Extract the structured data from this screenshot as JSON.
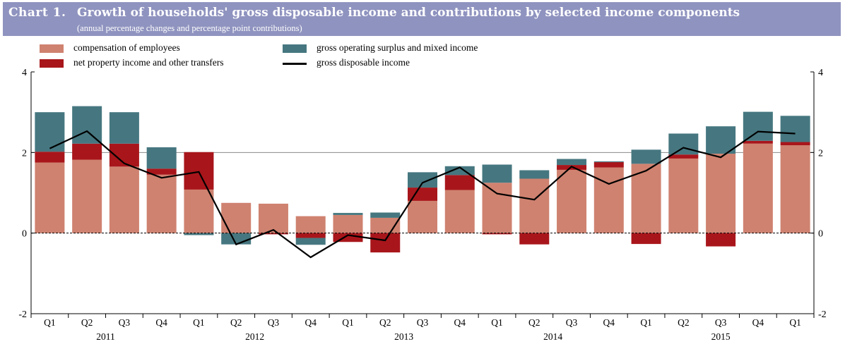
{
  "header": {
    "label": "Chart 1.",
    "title": "Growth of households' gross disposable income and contributions by selected income components",
    "subtitle": "(annual percentage changes and percentage point contributions)"
  },
  "legend": [
    {
      "name": "compensation of employees",
      "color": "#cf8270",
      "kind": "bar"
    },
    {
      "name": "net property income and other transfers",
      "color": "#a8161b",
      "kind": "bar"
    },
    {
      "name": "gross operating surplus and mixed income",
      "color": "#467780",
      "kind": "bar"
    },
    {
      "name": "gross disposable income",
      "color": "#000000",
      "kind": "line"
    }
  ],
  "chart_data": {
    "type": "bar",
    "stacked": true,
    "categories": [
      "Q1",
      "Q2",
      "Q3",
      "Q4",
      "Q1",
      "Q2",
      "Q3",
      "Q4",
      "Q1",
      "Q2",
      "Q3",
      "Q4",
      "Q1",
      "Q2",
      "Q3",
      "Q4",
      "Q1",
      "Q2",
      "Q3",
      "Q4",
      "Q1"
    ],
    "years": [
      {
        "label": "2011",
        "start": 0,
        "end": 3
      },
      {
        "label": "2012",
        "start": 4,
        "end": 7
      },
      {
        "label": "2013",
        "start": 8,
        "end": 11
      },
      {
        "label": "2014",
        "start": 12,
        "end": 15
      },
      {
        "label": "2015",
        "start": 16,
        "end": 20
      }
    ],
    "series": [
      {
        "name": "compensation of employees",
        "values": [
          1.75,
          1.82,
          1.65,
          1.45,
          1.08,
          0.75,
          0.73,
          0.42,
          0.45,
          0.38,
          0.8,
          1.07,
          1.25,
          1.35,
          1.57,
          1.63,
          1.72,
          1.85,
          1.97,
          2.22,
          2.18
        ]
      },
      {
        "name": "net property income and other transfers",
        "values": [
          0.27,
          0.4,
          0.57,
          0.15,
          0.93,
          0.0,
          -0.03,
          -0.12,
          -0.22,
          -0.48,
          0.33,
          0.37,
          -0.03,
          -0.28,
          0.12,
          0.13,
          -0.27,
          0.1,
          -0.33,
          0.07,
          0.08
        ]
      },
      {
        "name": "gross operating surplus and mixed income",
        "values": [
          0.98,
          0.93,
          0.78,
          0.53,
          -0.05,
          -0.28,
          0.0,
          -0.17,
          0.05,
          0.13,
          0.38,
          0.22,
          0.45,
          0.21,
          0.15,
          0.02,
          0.35,
          0.52,
          0.68,
          0.72,
          0.65
        ]
      },
      {
        "name": "gross disposable income",
        "type": "line",
        "values": [
          2.1,
          2.53,
          1.73,
          1.37,
          1.52,
          -0.28,
          0.08,
          -0.6,
          -0.05,
          -0.18,
          1.25,
          1.63,
          0.98,
          0.83,
          1.65,
          1.22,
          1.55,
          2.12,
          1.88,
          2.52,
          2.47
        ]
      }
    ],
    "title": "Growth of households' gross disposable income and contributions by selected income components",
    "xlabel": "",
    "ylabel": "",
    "ylim": [
      -2,
      4
    ],
    "yticks": [
      "-2",
      "0",
      "2",
      "4"
    ],
    "gridlines": [
      2
    ]
  }
}
